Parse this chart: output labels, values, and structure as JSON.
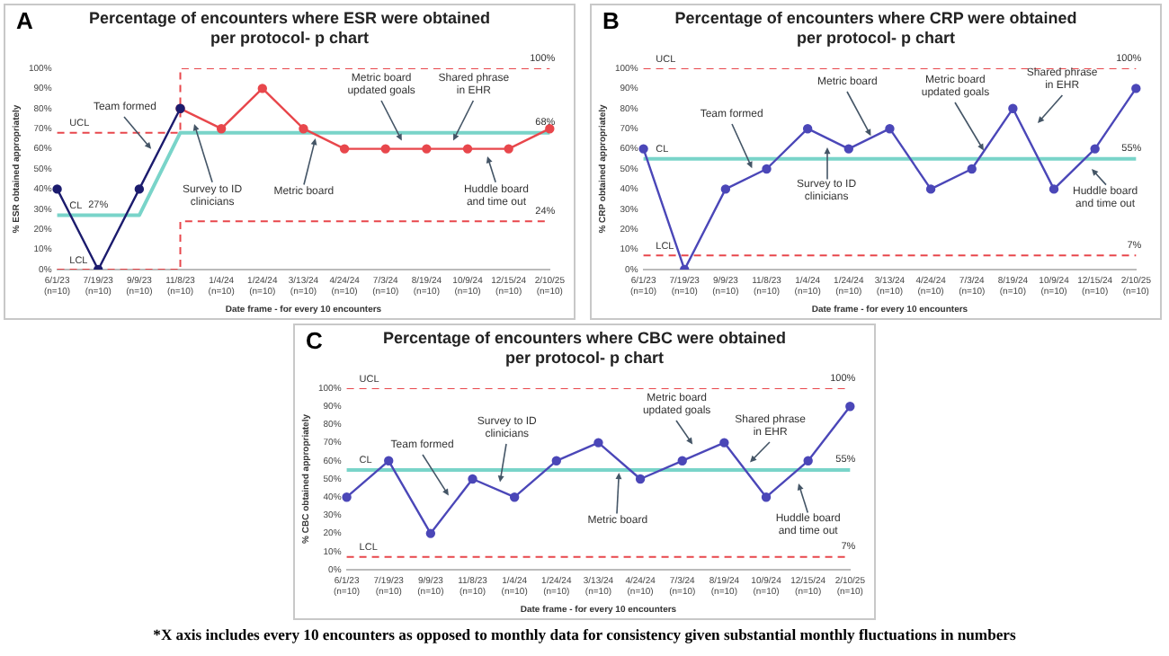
{
  "chart_data": [
    {
      "type": "line",
      "title": "Percentage of encounters where ESR were obtained per protocol- p chart",
      "xlabel": "Date frame - for every 10 encounters",
      "ylabel": "% ESR obtained appropriately",
      "categories": [
        "6/1/23 (n=10)",
        "7/19/23 (n=10)",
        "9/9/23 (n=10)",
        "11/8/23 (n=10)",
        "1/4/24 (n=10)",
        "1/24/24 (n=10)",
        "3/13/24 (n=10)",
        "4/24/24 (n=10)",
        "7/3/24 (n=10)",
        "8/19/24 (n=10)",
        "10/9/24 (n=10)",
        "12/15/24 (n=10)",
        "2/10/25 (n=10)"
      ],
      "ylim": [
        0,
        100
      ],
      "yticks": [
        {
          "value": 0,
          "label": "0%"
        },
        {
          "value": 10,
          "label": "10%"
        },
        {
          "value": 20,
          "label": "20%"
        },
        {
          "value": 30,
          "label": "30%"
        },
        {
          "value": 40,
          "label": "40%"
        },
        {
          "value": 50,
          "label": "50%"
        },
        {
          "value": 60,
          "label": "60%"
        },
        {
          "value": 70,
          "label": "70%"
        },
        {
          "value": 80,
          "label": "80%"
        },
        {
          "value": 90,
          "label": "90%"
        },
        {
          "value": 100,
          "label": "100%"
        }
      ],
      "grid": false,
      "legend": false,
      "marker": "circle",
      "series": [
        {
          "color": "#1c1c6e",
          "values": [
            40,
            0,
            40,
            80,
            null,
            null,
            null,
            null,
            null,
            null,
            null,
            null,
            null
          ]
        },
        {
          "color": "#e8474c",
          "values": [
            null,
            null,
            null,
            80,
            70,
            90,
            70,
            60,
            60,
            60,
            60,
            60,
            70
          ]
        },
        {
          "name": "CL",
          "type": "line",
          "color": "#79d4c9",
          "marker": "none",
          "values": [
            27,
            27,
            27,
            68,
            68,
            68,
            68,
            68,
            68,
            68,
            68,
            68,
            68
          ]
        },
        {
          "name": "UCL",
          "type": "step",
          "color": "#e8474c",
          "marker": "none",
          "line_style": "dashed",
          "values": [
            68,
            68,
            68,
            100,
            100,
            100,
            100,
            100,
            100,
            100,
            100,
            100,
            100
          ]
        },
        {
          "name": "LCL",
          "type": "step",
          "color": "#e8474c",
          "marker": "none",
          "line_style": "dashed",
          "values": [
            0,
            0,
            0,
            24,
            24,
            24,
            24,
            24,
            24,
            24,
            24,
            24,
            24
          ]
        }
      ],
      "annotations": [
        "A",
        "Team formed",
        "Survey to ID clinicians",
        "Metric board",
        "Metric board updated goals",
        "Shared phrase in EHR",
        "Huddle board and time out",
        {
          "text": "100%",
          "x": "2/10/25 (n=10)",
          "y": 100
        },
        {
          "text": "68%",
          "x": "2/10/25 (n=10)",
          "y": 68
        },
        {
          "text": "24%",
          "x": "2/10/25 (n=10)",
          "y": 24
        },
        {
          "text": "27%",
          "x": "7/19/23 (n=10)",
          "y": 27
        }
      ]
    },
    {
      "type": "line",
      "title": "Percentage of encounters where CRP were obtained per protocol- p chart",
      "xlabel": "Date frame - for every 10 encounters",
      "ylabel": "% CRP obtained appropriately",
      "categories": [
        "6/1/23 (n=10)",
        "7/19/23 (n=10)",
        "9/9/23 (n=10)",
        "11/8/23 (n=10)",
        "1/4/24 (n=10)",
        "1/24/24 (n=10)",
        "3/13/24 (n=10)",
        "4/24/24 (n=10)",
        "7/3/24 (n=10)",
        "8/19/24 (n=10)",
        "10/9/24 (n=10)",
        "12/15/24 (n=10)",
        "2/10/25 (n=10)"
      ],
      "ylim": [
        0,
        100
      ],
      "yticks": [
        {
          "value": 0,
          "label": "0%"
        },
        {
          "value": 10,
          "label": "10%"
        },
        {
          "value": 20,
          "label": "20%"
        },
        {
          "value": 30,
          "label": "30%"
        },
        {
          "value": 40,
          "label": "40%"
        },
        {
          "value": 50,
          "label": "50%"
        },
        {
          "value": 60,
          "label": "60%"
        },
        {
          "value": 70,
          "label": "70%"
        },
        {
          "value": 80,
          "label": "80%"
        },
        {
          "value": 90,
          "label": "90%"
        },
        {
          "value": 100,
          "label": "100%"
        }
      ],
      "grid": false,
      "legend": false,
      "marker": "circle",
      "series": [
        {
          "color": "#4b47b8",
          "values": [
            60,
            0,
            40,
            50,
            70,
            60,
            70,
            40,
            50,
            80,
            40,
            60,
            90
          ]
        },
        {
          "name": "CL",
          "type": "line",
          "color": "#79d4c9",
          "marker": "none",
          "values": [
            55,
            55,
            55,
            55,
            55,
            55,
            55,
            55,
            55,
            55,
            55,
            55,
            55
          ]
        },
        {
          "name": "UCL",
          "type": "step",
          "color": "#e8474c",
          "marker": "none",
          "line_style": "dashed",
          "values": [
            100,
            100,
            100,
            100,
            100,
            100,
            100,
            100,
            100,
            100,
            100,
            100,
            100
          ]
        },
        {
          "name": "LCL",
          "type": "step",
          "color": "#e8474c",
          "marker": "none",
          "line_style": "dashed",
          "values": [
            7,
            7,
            7,
            7,
            7,
            7,
            7,
            7,
            7,
            7,
            7,
            7,
            7
          ]
        }
      ],
      "annotations": [
        "B",
        "Team formed",
        "Survey to ID clinicians",
        "Metric board",
        "Metric board updated goals",
        "Shared phrase in EHR",
        "Huddle board and time out",
        {
          "text": "100%",
          "x": "2/10/25 (n=10)",
          "y": 100
        },
        {
          "text": "55%",
          "x": "2/10/25 (n=10)",
          "y": 55
        },
        {
          "text": "7%",
          "x": "2/10/25 (n=10)",
          "y": 7
        }
      ]
    },
    {
      "type": "line",
      "title": "Percentage of encounters where CBC were obtained per protocol- p chart",
      "xlabel": "Date frame - for every 10 encounters",
      "ylabel": "% CBC obtained appropriately",
      "categories": [
        "6/1/23 (n=10)",
        "7/19/23 (n=10)",
        "9/9/23 (n=10)",
        "11/8/23 (n=10)",
        "1/4/24 (n=10)",
        "1/24/24 (n=10)",
        "3/13/24 (n=10)",
        "4/24/24 (n=10)",
        "7/3/24 (n=10)",
        "8/19/24 (n=10)",
        "10/9/24 (n=10)",
        "12/15/24 (n=10)",
        "2/10/25 (n=10)"
      ],
      "ylim": [
        0,
        100
      ],
      "yticks": [
        {
          "value": 0,
          "label": "0%"
        },
        {
          "value": 10,
          "label": "10%"
        },
        {
          "value": 20,
          "label": "20%"
        },
        {
          "value": 30,
          "label": "30%"
        },
        {
          "value": 40,
          "label": "40%"
        },
        {
          "value": 50,
          "label": "50%"
        },
        {
          "value": 60,
          "label": "60%"
        },
        {
          "value": 70,
          "label": "70%"
        },
        {
          "value": 80,
          "label": "80%"
        },
        {
          "value": 90,
          "label": "90%"
        },
        {
          "value": 100,
          "label": "100%"
        }
      ],
      "grid": false,
      "legend": false,
      "marker": "circle",
      "series": [
        {
          "color": "#4b47b8",
          "values": [
            40,
            60,
            20,
            50,
            40,
            60,
            70,
            50,
            60,
            70,
            40,
            60,
            90
          ]
        },
        {
          "name": "CL",
          "type": "line",
          "color": "#79d4c9",
          "marker": "none",
          "values": [
            55,
            55,
            55,
            55,
            55,
            55,
            55,
            55,
            55,
            55,
            55,
            55,
            55
          ]
        },
        {
          "name": "UCL",
          "type": "step",
          "color": "#e8474c",
          "marker": "none",
          "line_style": "dashed",
          "values": [
            100,
            100,
            100,
            100,
            100,
            100,
            100,
            100,
            100,
            100,
            100,
            100,
            100
          ]
        },
        {
          "name": "LCL",
          "type": "step",
          "color": "#e8474c",
          "marker": "none",
          "line_style": "dashed",
          "values": [
            7,
            7,
            7,
            7,
            7,
            7,
            7,
            7,
            7,
            7,
            7,
            7,
            7
          ]
        }
      ],
      "annotations": [
        "C",
        "Team formed",
        "Survey to ID clinicians",
        "Metric board",
        "Metric board updated goals",
        "Shared phrase in EHR",
        "Huddle board and time out",
        {
          "text": "100%",
          "x": "2/10/25 (n=10)",
          "y": 100
        },
        {
          "text": "55%",
          "x": "2/10/25 (n=10)",
          "y": 55
        },
        {
          "text": "7%",
          "x": "2/10/25 (n=10)",
          "y": 7
        },
        "*X axis includes every 10 encounters as opposed to monthly data for consistency given substantial monthly fluctuations in numbers"
      ]
    }
  ]
}
